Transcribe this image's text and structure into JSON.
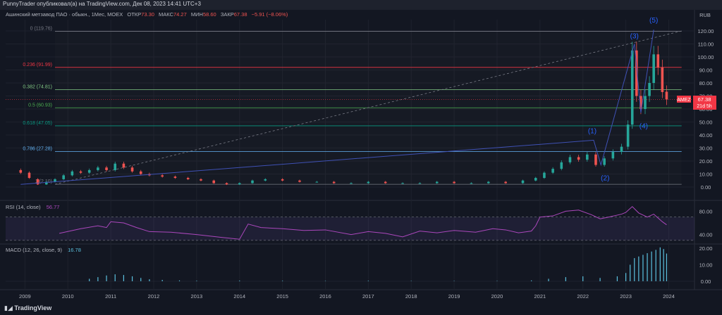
{
  "header": {
    "publisher_line": "PunnyTrader опубликовал(а) на TradingView.com, Дек 08, 2023 14:41 UTC+3"
  },
  "legend": {
    "symbol": "Ашинский метзавод ПАО · обыкн., 1Мес, MOEX",
    "open_label": "ОТКР",
    "open": "73.30",
    "high_label": "МАКС",
    "high": "74.27",
    "low_label": "МИН",
    "low": "58.60",
    "close_label": "ЗАКР",
    "close": "67.38",
    "change": "−5.91 (−8.06%)"
  },
  "price_axis": {
    "currency": "RUB",
    "ticks": [
      "120.00",
      "110.00",
      "100.00",
      "90.00",
      "80.00",
      "70.00",
      "60.00",
      "50.00",
      "40.00",
      "30.00",
      "20.00",
      "10.00",
      "0.00"
    ]
  },
  "price_badge": {
    "symbol": "AMEZ",
    "price": "67.38",
    "countdown": "21d 5h"
  },
  "rsi": {
    "label": "RSI (14, close)",
    "value": "56.77",
    "ticks": [
      "80.00",
      "40.00"
    ]
  },
  "macd": {
    "label": "MACD (12, 26, close, 9)",
    "value": "16.78",
    "ticks": [
      "20.00",
      "10.00",
      "0.00"
    ]
  },
  "time_axis": {
    "labels": [
      "2009",
      "2010",
      "2011",
      "2012",
      "2013",
      "2014",
      "2015",
      "2016",
      "2017",
      "2018",
      "2019",
      "2020",
      "2021",
      "2022",
      "2023",
      "2024"
    ]
  },
  "footer": {
    "brand": "TradingView"
  },
  "colors": {
    "up": "#26a69a",
    "down": "#ef5350",
    "rsi_line": "#ab47bc",
    "macd_hist": "#5bc0de",
    "badge": "#f23645"
  },
  "chart_data": {
    "type": "candlestick",
    "title": "Ашинский метзавод ПАО · обыкн., 1Мес, MOEX",
    "ylabel": "RUB",
    "ylim": [
      -4,
      126
    ],
    "candles": [
      {
        "t": 2008.9,
        "o": 13,
        "c": 11
      },
      {
        "t": 2009.1,
        "o": 11,
        "c": 7
      },
      {
        "t": 2009.3,
        "o": 6,
        "c": 2
      },
      {
        "t": 2009.5,
        "o": 2,
        "c": 4
      },
      {
        "t": 2009.7,
        "o": 4,
        "c": 6
      },
      {
        "t": 2009.9,
        "o": 6,
        "c": 9
      },
      {
        "t": 2010.1,
        "o": 9,
        "c": 12
      },
      {
        "t": 2010.3,
        "o": 12,
        "c": 11
      },
      {
        "t": 2010.5,
        "o": 11,
        "c": 13
      },
      {
        "t": 2010.7,
        "o": 13,
        "c": 15
      },
      {
        "t": 2010.9,
        "o": 15,
        "c": 13
      },
      {
        "t": 2011.1,
        "o": 13,
        "c": 18
      },
      {
        "t": 2011.3,
        "o": 18,
        "c": 15
      },
      {
        "t": 2011.5,
        "o": 15,
        "c": 12
      },
      {
        "t": 2011.7,
        "o": 12,
        "c": 10
      },
      {
        "t": 2011.9,
        "o": 10,
        "c": 9
      },
      {
        "t": 2012.2,
        "o": 9,
        "c": 8
      },
      {
        "t": 2012.5,
        "o": 8,
        "c": 7
      },
      {
        "t": 2012.8,
        "o": 7,
        "c": 6
      },
      {
        "t": 2013.1,
        "o": 6,
        "c": 5
      },
      {
        "t": 2013.4,
        "o": 5,
        "c": 3
      },
      {
        "t": 2013.7,
        "o": 3,
        "c": 2
      },
      {
        "t": 2014.0,
        "o": 2,
        "c": 3
      },
      {
        "t": 2014.3,
        "o": 3,
        "c": 5
      },
      {
        "t": 2014.6,
        "o": 5,
        "c": 6
      },
      {
        "t": 2015.0,
        "o": 6,
        "c": 5
      },
      {
        "t": 2015.4,
        "o": 5,
        "c": 4
      },
      {
        "t": 2015.8,
        "o": 4,
        "c": 4
      },
      {
        "t": 2016.2,
        "o": 4,
        "c": 3
      },
      {
        "t": 2016.6,
        "o": 3,
        "c": 3
      },
      {
        "t": 2017.0,
        "o": 3,
        "c": 4
      },
      {
        "t": 2017.4,
        "o": 4,
        "c": 3
      },
      {
        "t": 2017.8,
        "o": 3,
        "c": 3
      },
      {
        "t": 2018.2,
        "o": 3,
        "c": 3
      },
      {
        "t": 2018.6,
        "o": 3,
        "c": 4
      },
      {
        "t": 2019.0,
        "o": 4,
        "c": 3
      },
      {
        "t": 2019.4,
        "o": 3,
        "c": 3
      },
      {
        "t": 2019.8,
        "o": 3,
        "c": 4
      },
      {
        "t": 2020.2,
        "o": 4,
        "c": 3
      },
      {
        "t": 2020.6,
        "o": 3,
        "c": 5
      },
      {
        "t": 2020.9,
        "o": 5,
        "c": 7
      },
      {
        "t": 2021.1,
        "o": 7,
        "c": 11
      },
      {
        "t": 2021.3,
        "o": 11,
        "c": 14
      },
      {
        "t": 2021.5,
        "o": 14,
        "c": 19
      },
      {
        "t": 2021.7,
        "o": 19,
        "c": 23
      },
      {
        "t": 2021.9,
        "o": 23,
        "c": 21
      },
      {
        "t": 2022.1,
        "o": 21,
        "c": 25
      },
      {
        "t": 2022.3,
        "o": 25,
        "c": 17
      },
      {
        "t": 2022.5,
        "o": 17,
        "c": 22
      },
      {
        "t": 2022.7,
        "o": 22,
        "c": 27
      },
      {
        "t": 2022.9,
        "o": 27,
        "c": 31
      },
      {
        "t": 2023.05,
        "o": 31,
        "c": 48
      },
      {
        "t": 2023.15,
        "o": 48,
        "c": 105
      },
      {
        "t": 2023.25,
        "o": 105,
        "c": 70
      },
      {
        "t": 2023.35,
        "o": 70,
        "c": 60
      },
      {
        "t": 2023.45,
        "o": 60,
        "c": 70
      },
      {
        "t": 2023.55,
        "o": 70,
        "c": 80
      },
      {
        "t": 2023.65,
        "o": 80,
        "c": 102
      },
      {
        "t": 2023.75,
        "o": 102,
        "c": 92
      },
      {
        "t": 2023.85,
        "o": 92,
        "c": 73
      },
      {
        "t": 2023.95,
        "o": 73.3,
        "c": 67.38
      }
    ],
    "fibonacci": [
      {
        "level": "0",
        "price": 119.76,
        "color": "#787b86"
      },
      {
        "level": "0.236",
        "price": 91.99,
        "color": "#f23645"
      },
      {
        "level": "0.382",
        "price": 74.81,
        "color": "#81c784"
      },
      {
        "level": "0.5",
        "price": 60.93,
        "color": "#4caf50"
      },
      {
        "level": "0.618",
        "price": 47.05,
        "color": "#089981"
      },
      {
        "level": "0.786",
        "price": 27.28,
        "color": "#64b5f6"
      },
      {
        "level": "1",
        "price": 2.1,
        "color": "#787b86"
      }
    ],
    "elliott_waves": [
      {
        "label": "(1)",
        "t": 2022.25,
        "price": 36
      },
      {
        "label": "(2)",
        "t": 2022.42,
        "price": 17
      },
      {
        "label": "(3)",
        "t": 2023.2,
        "price": 110
      },
      {
        "label": "(4)",
        "t": 2023.35,
        "price": 57
      },
      {
        "label": "(5)",
        "t": 2023.65,
        "price": 121
      }
    ],
    "wave_line_start": {
      "t": 2008.9,
      "price": 2
    },
    "trend_line": {
      "t1": 2009.7,
      "p1": 2.1,
      "t2": 2024.3,
      "p2": 120
    },
    "rsi_series": [
      {
        "t": 2009.8,
        "v": 42
      },
      {
        "t": 2010.3,
        "v": 50
      },
      {
        "t": 2010.7,
        "v": 55
      },
      {
        "t": 2010.9,
        "v": 52
      },
      {
        "t": 2011.0,
        "v": 62
      },
      {
        "t": 2011.3,
        "v": 60
      },
      {
        "t": 2011.6,
        "v": 52
      },
      {
        "t": 2011.9,
        "v": 45
      },
      {
        "t": 2012.4,
        "v": 44
      },
      {
        "t": 2013.0,
        "v": 40
      },
      {
        "t": 2013.6,
        "v": 35
      },
      {
        "t": 2014.0,
        "v": 32
      },
      {
        "t": 2014.2,
        "v": 58
      },
      {
        "t": 2014.5,
        "v": 52
      },
      {
        "t": 2015.0,
        "v": 50
      },
      {
        "t": 2015.5,
        "v": 47
      },
      {
        "t": 2016.0,
        "v": 48
      },
      {
        "t": 2016.6,
        "v": 40
      },
      {
        "t": 2017.0,
        "v": 45
      },
      {
        "t": 2017.4,
        "v": 42
      },
      {
        "t": 2017.8,
        "v": 36
      },
      {
        "t": 2018.2,
        "v": 46
      },
      {
        "t": 2018.6,
        "v": 43
      },
      {
        "t": 2019.0,
        "v": 47
      },
      {
        "t": 2019.5,
        "v": 44
      },
      {
        "t": 2019.9,
        "v": 50
      },
      {
        "t": 2020.2,
        "v": 48
      },
      {
        "t": 2020.5,
        "v": 43
      },
      {
        "t": 2020.8,
        "v": 46
      },
      {
        "t": 2020.9,
        "v": 55
      },
      {
        "t": 2021.0,
        "v": 70
      },
      {
        "t": 2021.3,
        "v": 72
      },
      {
        "t": 2021.6,
        "v": 80
      },
      {
        "t": 2021.9,
        "v": 82
      },
      {
        "t": 2022.2,
        "v": 74
      },
      {
        "t": 2022.4,
        "v": 67
      },
      {
        "t": 2022.6,
        "v": 70
      },
      {
        "t": 2022.9,
        "v": 75
      },
      {
        "t": 2023.0,
        "v": 78
      },
      {
        "t": 2023.15,
        "v": 88
      },
      {
        "t": 2023.3,
        "v": 77
      },
      {
        "t": 2023.5,
        "v": 70
      },
      {
        "t": 2023.65,
        "v": 75
      },
      {
        "t": 2023.85,
        "v": 62
      },
      {
        "t": 2023.95,
        "v": 56.77
      }
    ],
    "rsi_bands": [
      70,
      30
    ],
    "rsi_ylim": [
      25,
      95
    ],
    "macd_series": [
      {
        "t": 2010.5,
        "v": 1.5
      },
      {
        "t": 2010.7,
        "v": 2.5
      },
      {
        "t": 2010.9,
        "v": 3.5
      },
      {
        "t": 2011.1,
        "v": 4.2
      },
      {
        "t": 2011.3,
        "v": 3.8
      },
      {
        "t": 2011.5,
        "v": 3.0
      },
      {
        "t": 2011.7,
        "v": 2.0
      },
      {
        "t": 2011.9,
        "v": 1.2
      },
      {
        "t": 2012.2,
        "v": 0.8
      },
      {
        "t": 2012.6,
        "v": 0.5
      },
      {
        "t": 2013.0,
        "v": 0.3
      },
      {
        "t": 2014.0,
        "v": 0.4
      },
      {
        "t": 2015.0,
        "v": 0.3
      },
      {
        "t": 2016.0,
        "v": 0.2
      },
      {
        "t": 2017.0,
        "v": 0.3
      },
      {
        "t": 2018.0,
        "v": 0.2
      },
      {
        "t": 2019.0,
        "v": 0.2
      },
      {
        "t": 2020.0,
        "v": 0.2
      },
      {
        "t": 2020.8,
        "v": 0.5
      },
      {
        "t": 2021.2,
        "v": 1.5
      },
      {
        "t": 2021.6,
        "v": 2.5
      },
      {
        "t": 2022.0,
        "v": 3.0
      },
      {
        "t": 2022.4,
        "v": 2.0
      },
      {
        "t": 2022.8,
        "v": 3.0
      },
      {
        "t": 2023.0,
        "v": 5.0
      },
      {
        "t": 2023.1,
        "v": 10.0
      },
      {
        "t": 2023.2,
        "v": 14.0
      },
      {
        "t": 2023.3,
        "v": 15.0
      },
      {
        "t": 2023.4,
        "v": 16.0
      },
      {
        "t": 2023.5,
        "v": 17.0
      },
      {
        "t": 2023.6,
        "v": 18.0
      },
      {
        "t": 2023.7,
        "v": 19.0
      },
      {
        "t": 2023.8,
        "v": 20.5
      },
      {
        "t": 2023.88,
        "v": 19.5
      },
      {
        "t": 2023.95,
        "v": 16.78
      }
    ],
    "macd_ylim": [
      -2,
      22
    ]
  }
}
